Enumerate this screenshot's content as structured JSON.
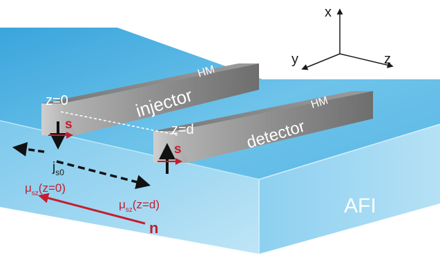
{
  "axes": {
    "x": "x",
    "y": "y",
    "z": "z"
  },
  "injector": {
    "name": "injector",
    "tag": "HM",
    "z_label": "z=0",
    "spin": "s"
  },
  "detector": {
    "name": "detector",
    "tag": "HM",
    "z_label": "z=d",
    "spin": "s"
  },
  "substrate": {
    "name": "AFI"
  },
  "spin_current": {
    "base": "j",
    "sub": "s0"
  },
  "mu_left": {
    "base": "μ",
    "sub": "sz",
    "arg": "(z=0)"
  },
  "mu_right": {
    "base": "μ",
    "sub": "sz",
    "arg": "(z=d)"
  },
  "neel_vector": {
    "label": "n"
  },
  "colors": {
    "afi_top": "#4fb3e3",
    "afi_front": "#8fd0ef",
    "afi_side": "#a9dcf3",
    "metal": "#8c8c8c",
    "red": "#c41e2e"
  }
}
